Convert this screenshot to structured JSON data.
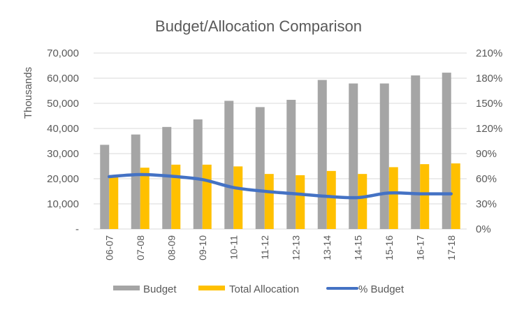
{
  "chart_data": {
    "type": "bar+line",
    "title": "Budget/Allocation Comparison",
    "ylabel": "Thousands",
    "ylim": [
      0,
      70000
    ],
    "y_ticks": [
      "-",
      "10,000",
      "20,000",
      "30,000",
      "40,000",
      "50,000",
      "60,000",
      "70,000"
    ],
    "y2lim": [
      0,
      210
    ],
    "y2_ticks": [
      "0%",
      "30%",
      "60%",
      "90%",
      "120%",
      "150%",
      "180%",
      "210%"
    ],
    "grid": true,
    "legend_position": "bottom",
    "categories": [
      "06-07",
      "07-08",
      "08-09",
      "09-10",
      "10-11",
      "11-12",
      "12-13",
      "13-14",
      "14-15",
      "15-16",
      "16-17",
      "17-18"
    ],
    "series": [
      {
        "name": "Budget",
        "type": "bar",
        "axis": "left",
        "color": "#A5A5A5",
        "values": [
          33500,
          37600,
          40600,
          43600,
          51000,
          48500,
          51400,
          59300,
          57900,
          57900,
          61100,
          62200
        ]
      },
      {
        "name": "Total Allocation",
        "type": "bar",
        "axis": "left",
        "color": "#FFC000",
        "values": [
          20700,
          24400,
          25600,
          25600,
          24900,
          21900,
          21400,
          23100,
          21900,
          24600,
          25800,
          26100
        ]
      },
      {
        "name": "% Budget",
        "type": "line",
        "axis": "right",
        "color": "#4472C4",
        "values": [
          62.5,
          65,
          63,
          59,
          49.5,
          45,
          42,
          39,
          37.5,
          43,
          42,
          42
        ]
      }
    ]
  }
}
